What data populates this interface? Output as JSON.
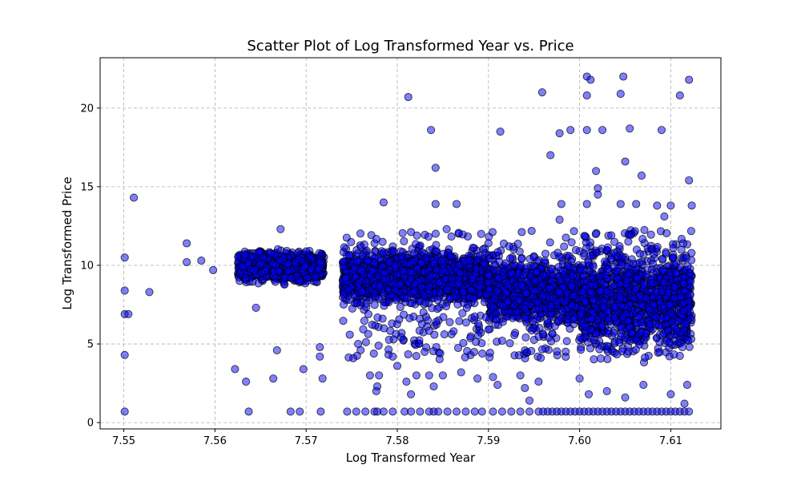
{
  "chart_data": {
    "type": "scatter",
    "title": "Scatter Plot of Log Transformed Year vs. Price",
    "xlabel": "Log Transformed Year",
    "ylabel": "Log Transformed Price",
    "xlim": [
      7.5474,
      7.6155
    ],
    "ylim": [
      -0.4,
      23.2
    ],
    "xticks": [
      7.55,
      7.56,
      7.57,
      7.58,
      7.59,
      7.6,
      7.61
    ],
    "xtick_labels": [
      "7.55",
      "7.56",
      "7.57",
      "7.58",
      "7.59",
      "7.60",
      "7.61"
    ],
    "yticks": [
      0,
      5,
      10,
      15,
      20
    ],
    "ytick_labels": [
      "0",
      "5",
      "10",
      "15",
      "20"
    ],
    "grid": true,
    "marker_color": "#0000ff",
    "marker_edge": "#000000",
    "marker_alpha": 0.5,
    "dense_bands": [
      {
        "x": [
          7.5625,
          7.572
        ],
        "y": [
          8.6,
          11.2
        ]
      },
      {
        "x": [
          7.574,
          7.59
        ],
        "y": [
          7.0,
          11.5
        ]
      },
      {
        "x": [
          7.59,
          7.6
        ],
        "y": [
          5.5,
          11.0
        ]
      },
      {
        "x": [
          7.6,
          7.6123
        ],
        "y": [
          3.5,
          12.2
        ]
      }
    ],
    "floor_points": {
      "y": 0.7,
      "x": [
        7.5501,
        7.5637,
        7.5683,
        7.5693,
        7.5716,
        7.5745,
        7.5755,
        7.5765,
        7.5775,
        7.5778,
        7.5785,
        7.5795,
        7.5808,
        7.5815,
        7.5825,
        7.5835,
        7.584,
        7.5845,
        7.5855,
        7.5865,
        7.5875,
        7.5885,
        7.5893,
        7.5905,
        7.5915,
        7.5925,
        7.5935,
        7.5945,
        7.5955,
        7.596,
        7.5965,
        7.597,
        7.5975,
        7.598,
        7.5985,
        7.599,
        7.5995,
        7.6,
        7.6005,
        7.601,
        7.6015,
        7.602,
        7.6025,
        7.603,
        7.6035,
        7.604,
        7.6045,
        7.605,
        7.6055,
        7.606,
        7.6065,
        7.607,
        7.6075,
        7.608,
        7.6085,
        7.609,
        7.6095,
        7.61,
        7.6105,
        7.611,
        7.6115,
        7.612
      ]
    },
    "scattered_points": [
      {
        "x": 7.5501,
        "y": 10.5
      },
      {
        "x": 7.5501,
        "y": 8.4
      },
      {
        "x": 7.5501,
        "y": 6.9
      },
      {
        "x": 7.5505,
        "y": 6.9
      },
      {
        "x": 7.5501,
        "y": 4.3
      },
      {
        "x": 7.5511,
        "y": 14.3
      },
      {
        "x": 7.5528,
        "y": 8.3
      },
      {
        "x": 7.5569,
        "y": 11.4
      },
      {
        "x": 7.5569,
        "y": 10.2
      },
      {
        "x": 7.5585,
        "y": 10.3
      },
      {
        "x": 7.5598,
        "y": 9.7
      },
      {
        "x": 7.5622,
        "y": 3.4
      },
      {
        "x": 7.5634,
        "y": 2.6
      },
      {
        "x": 7.5645,
        "y": 7.3
      },
      {
        "x": 7.5664,
        "y": 2.8
      },
      {
        "x": 7.5668,
        "y": 4.6
      },
      {
        "x": 7.5697,
        "y": 3.4
      },
      {
        "x": 7.5715,
        "y": 4.8
      },
      {
        "x": 7.5715,
        "y": 4.2
      },
      {
        "x": 7.5718,
        "y": 2.8
      },
      {
        "x": 7.5672,
        "y": 12.3
      },
      {
        "x": 7.5757,
        "y": 5.0
      },
      {
        "x": 7.577,
        "y": 3.0
      },
      {
        "x": 7.578,
        "y": 3.0
      },
      {
        "x": 7.5778,
        "y": 2.3
      },
      {
        "x": 7.5777,
        "y": 2.0
      },
      {
        "x": 7.5785,
        "y": 14.0
      },
      {
        "x": 7.5795,
        "y": 4.2
      },
      {
        "x": 7.58,
        "y": 3.6
      },
      {
        "x": 7.581,
        "y": 2.6
      },
      {
        "x": 7.5815,
        "y": 1.8
      },
      {
        "x": 7.5812,
        "y": 20.7
      },
      {
        "x": 7.5821,
        "y": 3.0
      },
      {
        "x": 7.583,
        "y": 4.5
      },
      {
        "x": 7.5835,
        "y": 3.0
      },
      {
        "x": 7.584,
        "y": 2.3
      },
      {
        "x": 7.5837,
        "y": 18.6
      },
      {
        "x": 7.5842,
        "y": 16.2
      },
      {
        "x": 7.5842,
        "y": 13.9
      },
      {
        "x": 7.5865,
        "y": 13.9
      },
      {
        "x": 7.585,
        "y": 3.0
      },
      {
        "x": 7.587,
        "y": 3.2
      },
      {
        "x": 7.5888,
        "y": 2.8
      },
      {
        "x": 7.5905,
        "y": 2.9
      },
      {
        "x": 7.591,
        "y": 2.4
      },
      {
        "x": 7.5913,
        "y": 18.5
      },
      {
        "x": 7.5935,
        "y": 3.0
      },
      {
        "x": 7.594,
        "y": 2.2
      },
      {
        "x": 7.5945,
        "y": 1.4
      },
      {
        "x": 7.5955,
        "y": 2.6
      },
      {
        "x": 7.5959,
        "y": 21.0
      },
      {
        "x": 7.5968,
        "y": 17.0
      },
      {
        "x": 7.5978,
        "y": 18.4
      },
      {
        "x": 7.599,
        "y": 18.6
      },
      {
        "x": 7.598,
        "y": 13.9
      },
      {
        "x": 7.5978,
        "y": 12.9
      },
      {
        "x": 7.6008,
        "y": 22.0
      },
      {
        "x": 7.6012,
        "y": 21.8
      },
      {
        "x": 7.6008,
        "y": 20.8
      },
      {
        "x": 7.6008,
        "y": 18.6
      },
      {
        "x": 7.6025,
        "y": 18.6
      },
      {
        "x": 7.6018,
        "y": 16.0
      },
      {
        "x": 7.602,
        "y": 14.9
      },
      {
        "x": 7.602,
        "y": 14.5
      },
      {
        "x": 7.6008,
        "y": 13.9
      },
      {
        "x": 7.6048,
        "y": 22.0
      },
      {
        "x": 7.6045,
        "y": 20.9
      },
      {
        "x": 7.6055,
        "y": 18.7
      },
      {
        "x": 7.605,
        "y": 16.6
      },
      {
        "x": 7.6068,
        "y": 15.7
      },
      {
        "x": 7.6045,
        "y": 13.9
      },
      {
        "x": 7.6062,
        "y": 13.9
      },
      {
        "x": 7.609,
        "y": 18.6
      },
      {
        "x": 7.611,
        "y": 20.8
      },
      {
        "x": 7.612,
        "y": 21.8
      },
      {
        "x": 7.612,
        "y": 15.4
      },
      {
        "x": 7.6123,
        "y": 13.8
      },
      {
        "x": 7.61,
        "y": 13.8
      },
      {
        "x": 7.6085,
        "y": 13.8
      },
      {
        "x": 7.6093,
        "y": 13.1
      },
      {
        "x": 7.603,
        "y": 2.0
      },
      {
        "x": 7.605,
        "y": 1.6
      },
      {
        "x": 7.607,
        "y": 2.4
      },
      {
        "x": 7.61,
        "y": 1.8
      },
      {
        "x": 7.6115,
        "y": 1.2
      },
      {
        "x": 7.6118,
        "y": 2.4
      },
      {
        "x": 7.6,
        "y": 2.8
      },
      {
        "x": 7.601,
        "y": 1.8
      }
    ]
  }
}
